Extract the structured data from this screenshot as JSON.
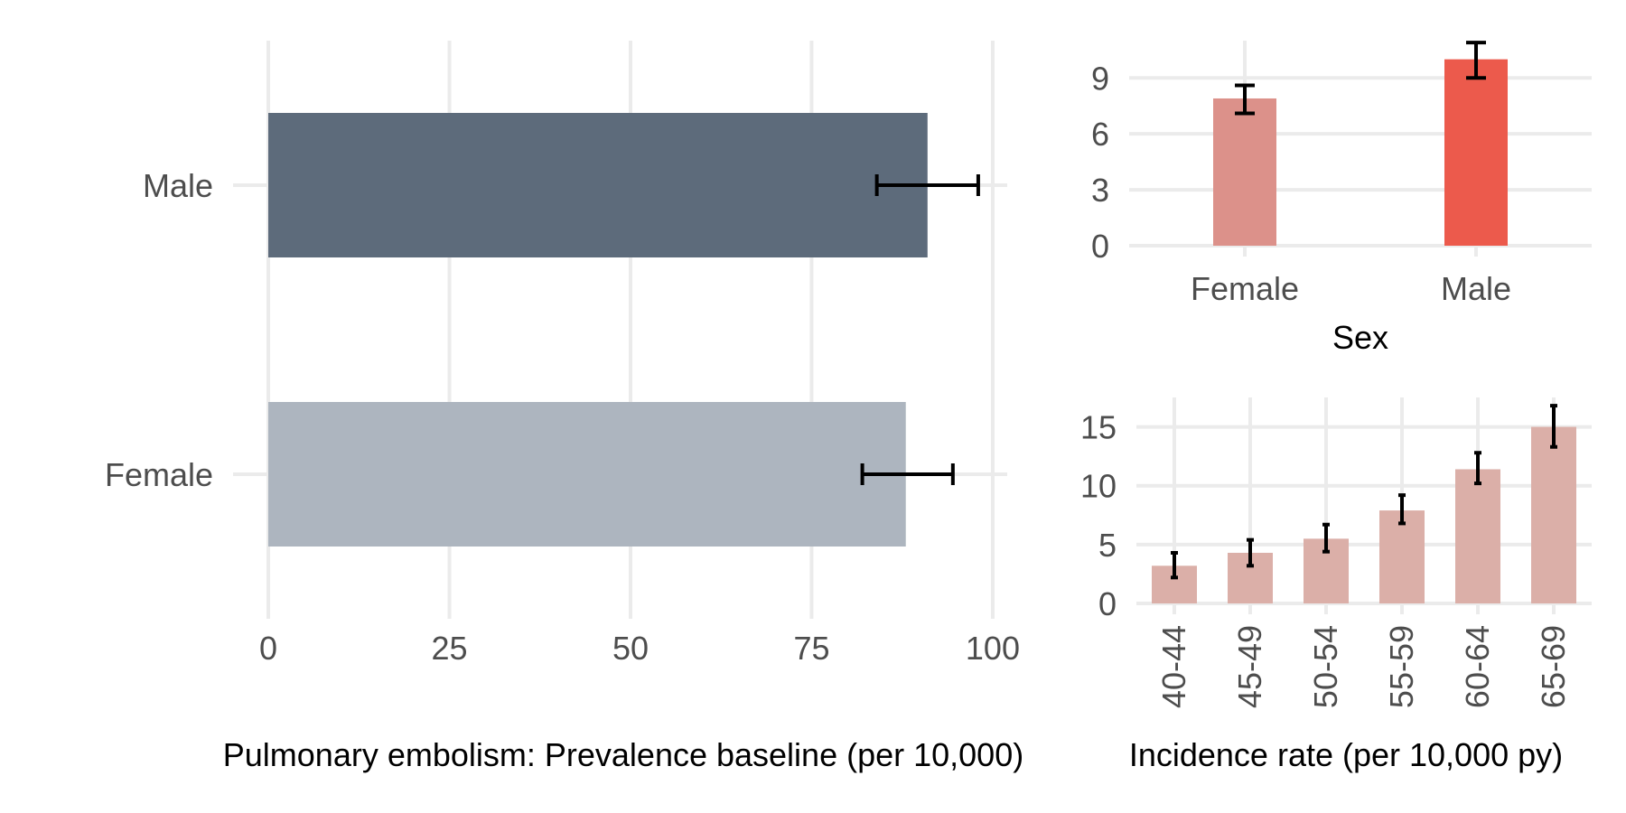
{
  "chart_data": [
    {
      "id": "prevalence",
      "type": "bar",
      "orientation": "horizontal",
      "categories": [
        "Male",
        "Female"
      ],
      "values": [
        91,
        88
      ],
      "ci_low": [
        84,
        82
      ],
      "ci_high": [
        98,
        94.5
      ],
      "colors": [
        "#5d6b7b",
        "#adb5bf"
      ],
      "xlabel": "Pulmonary embolism: Prevalence baseline (per 10,000)",
      "ylabel": "",
      "xlim": [
        0,
        102
      ],
      "xticks": [
        0,
        25,
        50,
        75,
        100
      ],
      "grid": true,
      "legend": "none"
    },
    {
      "id": "incidence-sex",
      "type": "bar",
      "categories": [
        "Female",
        "Male"
      ],
      "values": [
        7.9,
        10.0
      ],
      "ci_low": [
        7.1,
        9.0
      ],
      "ci_high": [
        8.6,
        10.9
      ],
      "colors": [
        "#dc918a",
        "#ec5a4c"
      ],
      "xlabel": "Sex",
      "ylabel": "",
      "ylim": [
        0,
        11
      ],
      "yticks": [
        0,
        3,
        6,
        9
      ],
      "grid": true,
      "legend": "none"
    },
    {
      "id": "incidence-age",
      "type": "bar",
      "categories": [
        "40-44",
        "45-49",
        "50-54",
        "55-59",
        "60-64",
        "65-69"
      ],
      "values": [
        3.2,
        4.3,
        5.5,
        7.9,
        11.4,
        15.0
      ],
      "ci_low": [
        2.2,
        3.2,
        4.4,
        6.8,
        10.2,
        13.3
      ],
      "ci_high": [
        4.3,
        5.4,
        6.7,
        9.2,
        12.8,
        16.8
      ],
      "colors": [
        "#dbafa8"
      ],
      "xlabel": "Incidence rate (per 10,000 py)",
      "ylabel": "",
      "ylim": [
        0,
        17.5
      ],
      "yticks": [
        0,
        5,
        10,
        15
      ],
      "grid": true,
      "legend": "none"
    }
  ]
}
